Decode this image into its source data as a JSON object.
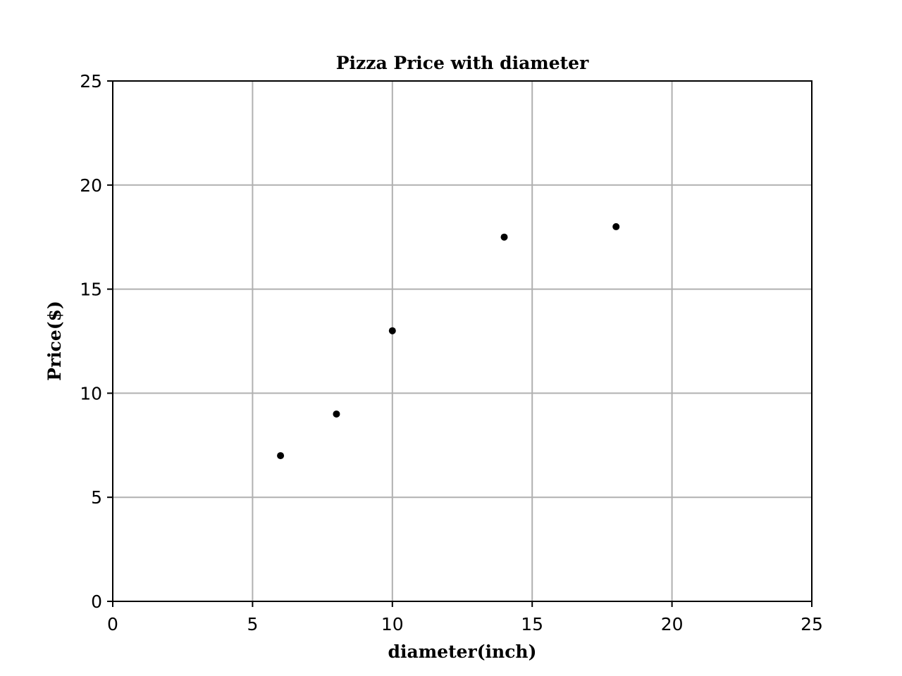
{
  "chart_data": {
    "type": "scatter",
    "title": "Pizza Price with diameter",
    "xlabel": "diameter(inch)",
    "ylabel": "Price($)",
    "xlim": [
      0,
      25
    ],
    "ylim": [
      0,
      25
    ],
    "xticks": [
      0,
      5,
      10,
      15,
      20,
      25
    ],
    "yticks": [
      0,
      5,
      10,
      15,
      20,
      25
    ],
    "grid": true,
    "point_color": "#000000",
    "grid_color": "#b0b0b0",
    "points": [
      {
        "x": 6,
        "y": 7
      },
      {
        "x": 8,
        "y": 9
      },
      {
        "x": 10,
        "y": 13
      },
      {
        "x": 14,
        "y": 17.5
      },
      {
        "x": 18,
        "y": 18
      }
    ]
  }
}
